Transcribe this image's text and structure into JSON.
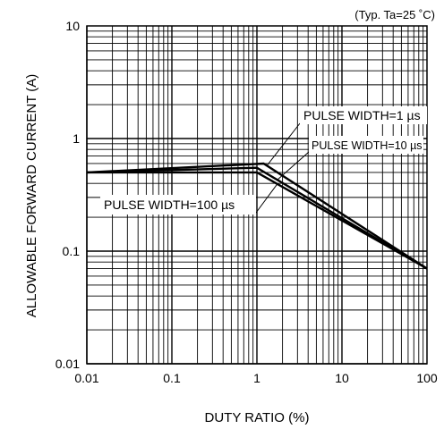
{
  "chart_data": {
    "type": "line",
    "title": "",
    "note": "(Typ. Ta=25 ˚C)",
    "xlabel": "DUTY RATIO (%)",
    "ylabel": "ALLOWABLE FORWARD CURRENT (A)",
    "x_scale": "log",
    "y_scale": "log",
    "xlim": [
      0.01,
      100
    ],
    "ylim": [
      0.01,
      10
    ],
    "grid": true,
    "x_ticks": [
      {
        "value": 0.01,
        "label": "0.01"
      },
      {
        "value": 0.1,
        "label": "0.1"
      },
      {
        "value": 1,
        "label": "1"
      },
      {
        "value": 10,
        "label": "10"
      },
      {
        "value": 100,
        "label": "100"
      }
    ],
    "y_ticks": [
      {
        "value": 0.01,
        "label": "0.01"
      },
      {
        "value": 0.1,
        "label": "0.1"
      },
      {
        "value": 1,
        "label": "1"
      },
      {
        "value": 10,
        "label": "10"
      }
    ],
    "series": [
      {
        "name": "PULSE WIDTH=1 µs",
        "x": [
          0.01,
          1.2,
          100
        ],
        "y": [
          0.5,
          0.6,
          0.07
        ]
      },
      {
        "name": "PULSE WIDTH=10 µs",
        "x": [
          0.01,
          1,
          100
        ],
        "y": [
          0.5,
          0.55,
          0.07
        ]
      },
      {
        "name": "PULSE WIDTH=100 µs",
        "x": [
          0.01,
          1,
          100
        ],
        "y": [
          0.5,
          0.5,
          0.07
        ]
      }
    ]
  }
}
